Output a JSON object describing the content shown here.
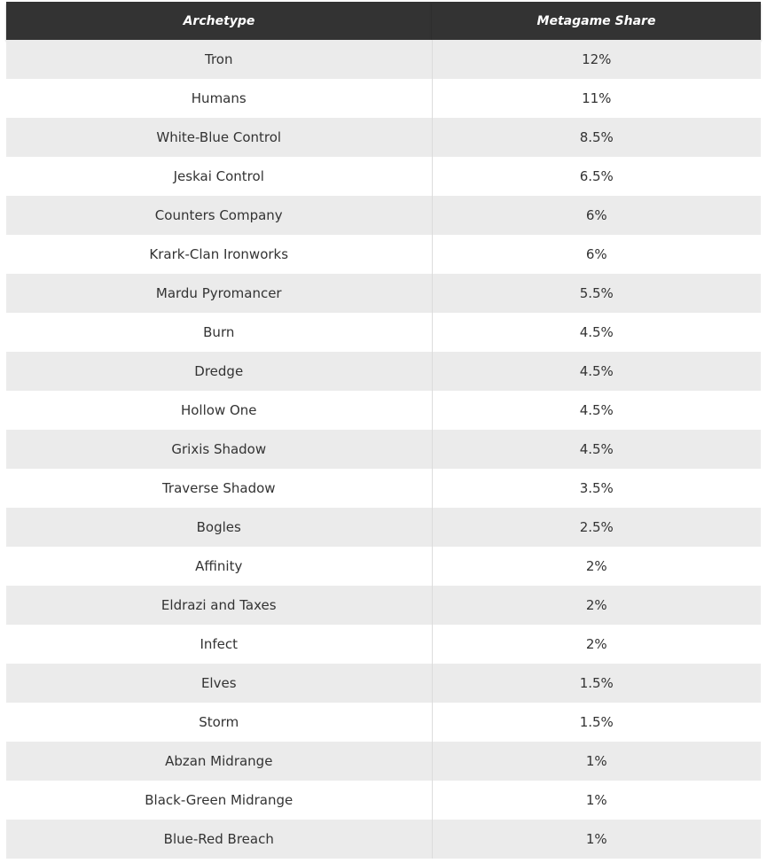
{
  "table": {
    "header": [
      "Archetype",
      "Metagame Share"
    ],
    "rows": [
      [
        "Tron",
        "12%"
      ],
      [
        "Humans",
        "11%"
      ],
      [
        "White-Blue Control",
        "8.5%"
      ],
      [
        "Jeskai Control",
        "6.5%"
      ],
      [
        "Counters Company",
        "6%"
      ],
      [
        "Krark-Clan Ironworks",
        "6%"
      ],
      [
        "Mardu Pyromancer",
        "5.5%"
      ],
      [
        "Burn",
        "4.5%"
      ],
      [
        "Dredge",
        "4.5%"
      ],
      [
        "Hollow One",
        "4.5%"
      ],
      [
        "Grixis Shadow",
        "4.5%"
      ],
      [
        "Traverse Shadow",
        "3.5%"
      ],
      [
        "Bogles",
        "2.5%"
      ],
      [
        "Affinity",
        "2%"
      ],
      [
        "Eldrazi and Taxes",
        "2%"
      ],
      [
        "Infect",
        "2%"
      ],
      [
        "Elves",
        "1.5%"
      ],
      [
        "Storm",
        "1.5%"
      ],
      [
        "Abzan Midrange",
        "1%"
      ],
      [
        "Black-Green Midrange",
        "1%"
      ],
      [
        "Blue-Red Breach",
        "1%"
      ]
    ]
  }
}
